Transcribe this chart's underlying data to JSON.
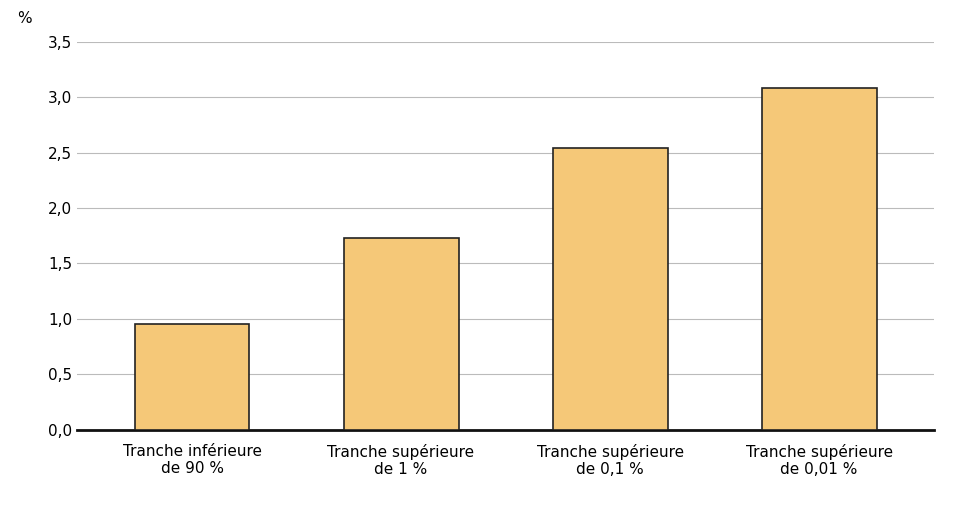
{
  "categories": [
    "Tranche inférieure\nde 90 %",
    "Tranche supérieure\nde 1 %",
    "Tranche supérieure\nde 0,1 %",
    "Tranche supérieure\nde 0,01 %"
  ],
  "values": [
    0.95,
    1.73,
    2.54,
    3.08
  ],
  "bar_color": "#F5C878",
  "bar_edge_color": "#222222",
  "bar_edge_width": 1.2,
  "ylabel": "%",
  "ylim": [
    0,
    3.5
  ],
  "yticks": [
    0.0,
    0.5,
    1.0,
    1.5,
    2.0,
    2.5,
    3.0,
    3.5
  ],
  "ytick_labels": [
    "0,0",
    "0,5",
    "1,0",
    "1,5",
    "2,0",
    "2,5",
    "3,0",
    "3,5"
  ],
  "background_color": "#ffffff",
  "grid_color": "#bbbbbb",
  "tick_fontsize": 11,
  "label_fontsize": 11,
  "bar_width": 0.55,
  "xlim": [
    -0.55,
    3.55
  ]
}
